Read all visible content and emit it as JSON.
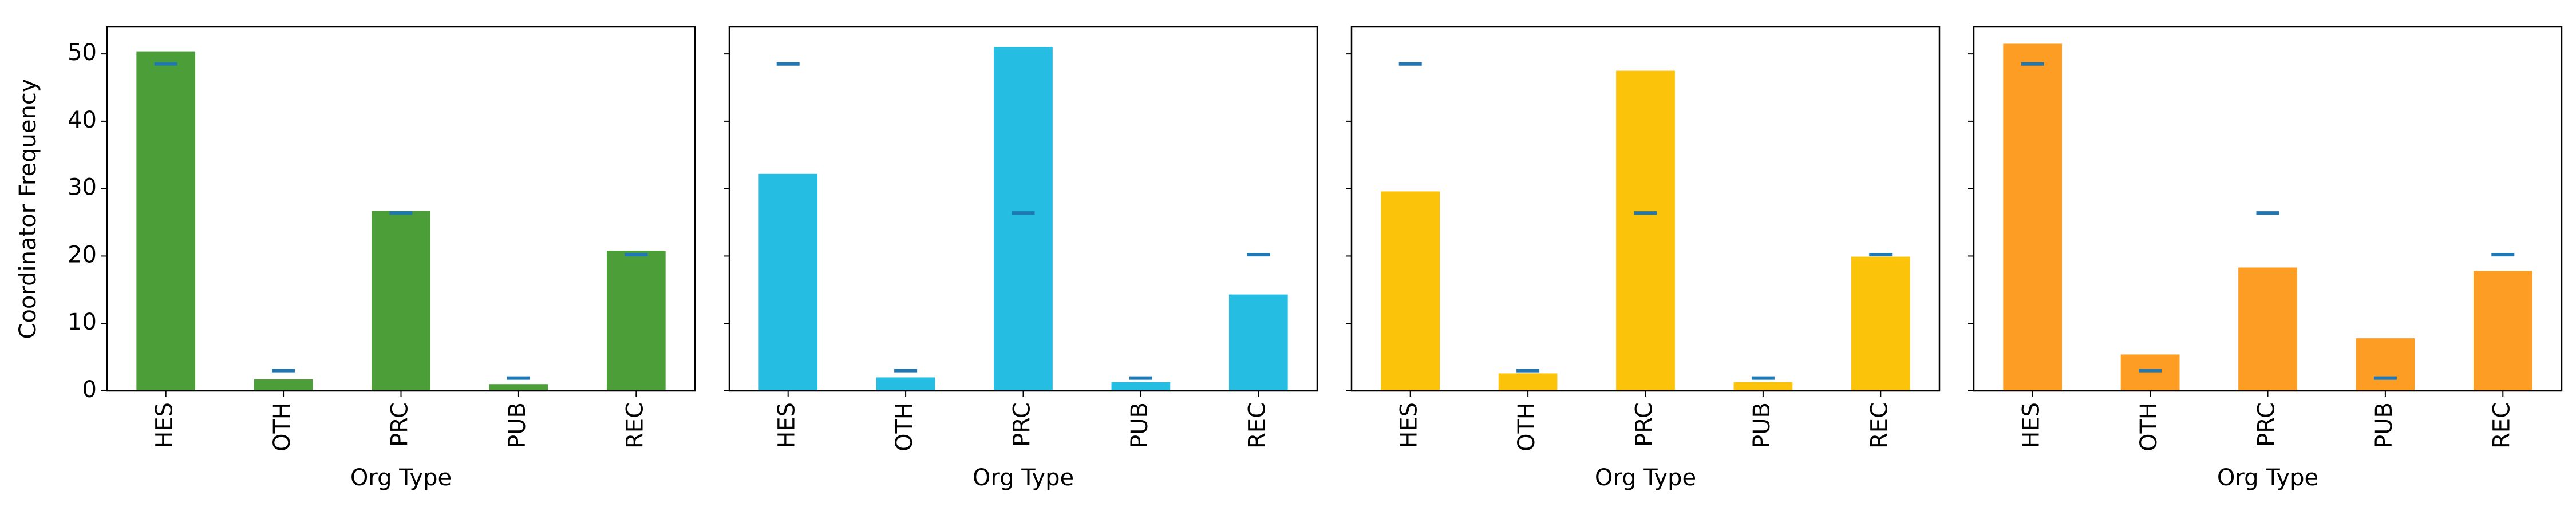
{
  "chart_data": [
    {
      "type": "bar",
      "categories": [
        "HES",
        "OTH",
        "PRC",
        "PUB",
        "REC"
      ],
      "values": [
        50.3,
        1.7,
        26.7,
        1.0,
        20.8
      ],
      "reference_marks": [
        48.5,
        3.0,
        26.4,
        1.9,
        20.2
      ],
      "xlabel": "Org Type",
      "ylabel": "Coordinator Frequency",
      "ylim": [
        0,
        54
      ],
      "yticks": [
        0,
        10,
        20,
        30,
        40,
        50
      ],
      "color": "#4c9f38"
    },
    {
      "type": "bar",
      "categories": [
        "HES",
        "OTH",
        "PRC",
        "PUB",
        "REC"
      ],
      "values": [
        32.2,
        2.0,
        51.0,
        1.3,
        14.3
      ],
      "reference_marks": [
        48.5,
        3.0,
        26.4,
        1.9,
        20.2
      ],
      "xlabel": "Org Type",
      "ylabel": "",
      "ylim": [
        0,
        54
      ],
      "yticks": [
        0,
        10,
        20,
        30,
        40,
        50
      ],
      "color": "#26bde2"
    },
    {
      "type": "bar",
      "categories": [
        "HES",
        "OTH",
        "PRC",
        "PUB",
        "REC"
      ],
      "values": [
        29.6,
        2.6,
        47.5,
        1.3,
        19.9
      ],
      "reference_marks": [
        48.5,
        3.0,
        26.4,
        1.9,
        20.2
      ],
      "xlabel": "Org Type",
      "ylabel": "",
      "ylim": [
        0,
        54
      ],
      "yticks": [
        0,
        10,
        20,
        30,
        40,
        50
      ],
      "color": "#fcc30b"
    },
    {
      "type": "bar",
      "categories": [
        "HES",
        "OTH",
        "PRC",
        "PUB",
        "REC"
      ],
      "values": [
        51.5,
        5.4,
        18.3,
        7.8,
        17.8
      ],
      "reference_marks": [
        48.5,
        3.0,
        26.4,
        1.9,
        20.2
      ],
      "xlabel": "Org Type",
      "ylabel": "",
      "ylim": [
        0,
        54
      ],
      "yticks": [
        0,
        10,
        20,
        30,
        40,
        50
      ],
      "color": "#fd9d24"
    }
  ],
  "reference_mark_color": "#1f77b4",
  "axis_color": "#000000"
}
